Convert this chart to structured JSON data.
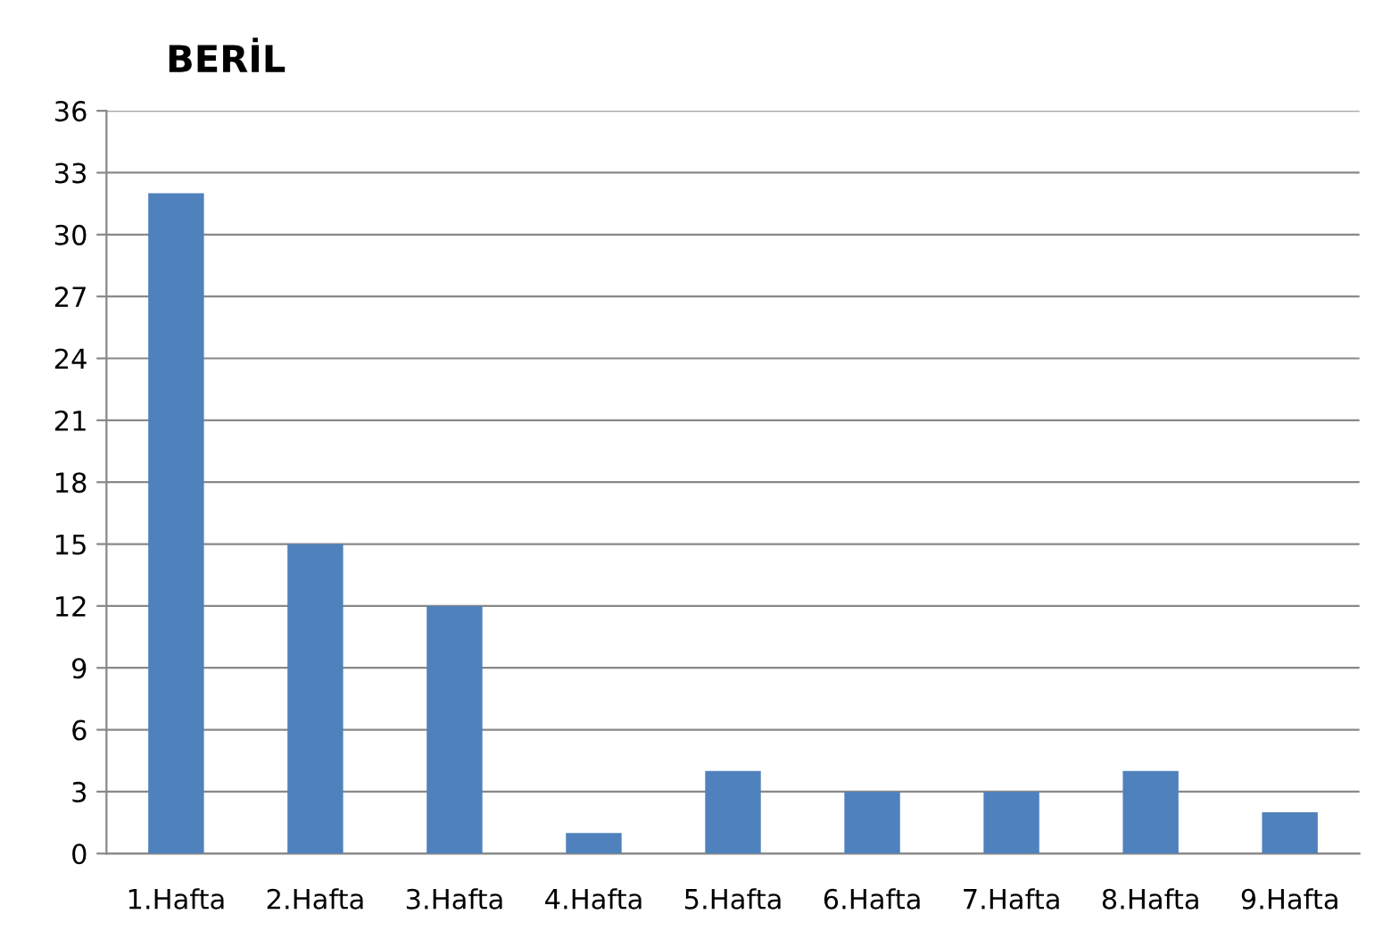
{
  "chart_data": {
    "type": "bar",
    "title": "BERİL",
    "categories": [
      "1.Hafta",
      "2.Hafta",
      "3.Hafta",
      "4.Hafta",
      "5.Hafta",
      "6.Hafta",
      "7.Hafta",
      "8.Hafta",
      "9.Hafta"
    ],
    "values": [
      32,
      15,
      12,
      1,
      4,
      3,
      3,
      4,
      2
    ],
    "color": "#4f81bd",
    "ylim": [
      0,
      36
    ],
    "yticks": [
      0,
      3,
      6,
      9,
      12,
      15,
      18,
      21,
      24,
      27,
      30,
      33,
      36
    ],
    "grid": "y"
  }
}
